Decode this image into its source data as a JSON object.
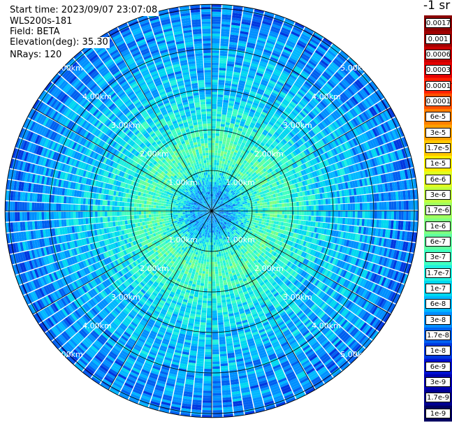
{
  "header": {
    "start_time": "Start time: 2023/09/07 23:07:08",
    "instrument": "WLS200s-181",
    "field": "Field: BETA",
    "elevation": "Elevation(deg): 35.30",
    "nrays": "NRays: 120"
  },
  "colorbar": {
    "unit": "-1 sr",
    "labels": [
      "0.0017",
      "0.001",
      "0.0006",
      "0.0003",
      "0.00017",
      "0.0001",
      "6e-5",
      "3e-5",
      "1.7e-5",
      "1e-5",
      "6e-6",
      "3e-6",
      "1.7e-6",
      "1e-6",
      "6e-7",
      "3e-7",
      "1.7e-7",
      "1e-7",
      "6e-8",
      "3e-8",
      "1.7e-8",
      "1e-8",
      "6e-9",
      "3e-9",
      "1.7e-9",
      "1e-9"
    ],
    "colors": [
      "#8b0000",
      "#a00000",
      "#c80000",
      "#e60000",
      "#ff2000",
      "#ff5000",
      "#ff8000",
      "#ffa000",
      "#ffc800",
      "#ffee00",
      "#e0ff20",
      "#c0ff40",
      "#a0ff60",
      "#80ff80",
      "#60ffa0",
      "#40ffc0",
      "#20f0e0",
      "#00d8f0",
      "#00b8ff",
      "#0090ff",
      "#0060f0",
      "#0038e0",
      "#0010d0",
      "#0000b0",
      "#000090",
      "#000060"
    ]
  },
  "chart_data": {
    "type": "heatmap",
    "projection": "polar",
    "title": "",
    "field": "BETA",
    "nrays": 120,
    "elevation_deg": 35.3,
    "range_unit": "km",
    "range_rings_km": [
      1,
      2,
      3,
      4,
      5
    ],
    "range_ring_labels": [
      "1.00km",
      "2.00km",
      "3.00km",
      "4.00km",
      "5.00km"
    ],
    "max_range_km": 5.1,
    "spokes_deg": [
      0,
      30,
      60,
      90,
      120,
      150,
      180,
      210,
      240,
      270,
      300,
      330
    ],
    "colorscale": "log",
    "value_range": [
      1e-09,
      0.0017
    ],
    "radial_profile": [
      {
        "range_km": 0.5,
        "value": 6e-08
      },
      {
        "range_km": 1.0,
        "value": 3e-07
      },
      {
        "range_km": 1.5,
        "value": 6e-07
      },
      {
        "range_km": 2.0,
        "value": 3e-07
      },
      {
        "range_km": 2.5,
        "value": 1.7e-07
      },
      {
        "range_km": 3.0,
        "value": 1e-07
      },
      {
        "range_km": 4.0,
        "value": 6e-08
      },
      {
        "range_km": 5.0,
        "value": 3e-08
      }
    ]
  }
}
